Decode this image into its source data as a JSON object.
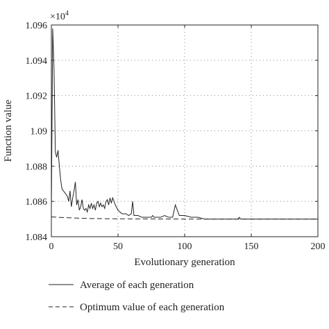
{
  "chart_data": {
    "type": "line",
    "xlabel": "Evolutionary generation",
    "ylabel": "Function value",
    "y_multiplier": "×10",
    "y_multiplier_exp": "4",
    "xlim": [
      0,
      200
    ],
    "ylim": [
      1.084,
      1.096
    ],
    "x_ticks": [
      "0",
      "50",
      "100",
      "150",
      "200"
    ],
    "y_ticks": [
      "1.084",
      "1.086",
      "1.088",
      "1.09",
      "1.092",
      "1.094",
      "1.096"
    ],
    "grid": "dotted",
    "legend_position": "bottom",
    "series": [
      {
        "name": "Average of each generation",
        "style": "solid",
        "points": [
          [
            0,
            1.0855
          ],
          [
            1,
            1.0958
          ],
          [
            2,
            1.0935
          ],
          [
            3,
            1.0888
          ],
          [
            4,
            1.0885
          ],
          [
            5,
            1.0889
          ],
          [
            6,
            1.088
          ],
          [
            7,
            1.0872
          ],
          [
            8,
            1.0867
          ],
          [
            10,
            1.0865
          ],
          [
            12,
            1.0863
          ],
          [
            13,
            1.086
          ],
          [
            14,
            1.0866
          ],
          [
            15,
            1.0857
          ],
          [
            16,
            1.0862
          ],
          [
            17,
            1.0866
          ],
          [
            18,
            1.0871
          ],
          [
            19,
            1.0858
          ],
          [
            20,
            1.0861
          ],
          [
            21,
            1.0855
          ],
          [
            22,
            1.0857
          ],
          [
            23,
            1.0861
          ],
          [
            24,
            1.0856
          ],
          [
            25,
            1.0855
          ],
          [
            26,
            1.0856
          ],
          [
            27,
            1.0854
          ],
          [
            28,
            1.0858
          ],
          [
            29,
            1.0856
          ],
          [
            30,
            1.0859
          ],
          [
            31,
            1.0856
          ],
          [
            32,
            1.0858
          ],
          [
            33,
            1.0855
          ],
          [
            34,
            1.0859
          ],
          [
            35,
            1.086
          ],
          [
            36,
            1.0857
          ],
          [
            37,
            1.0859
          ],
          [
            38,
            1.0857
          ],
          [
            39,
            1.0858
          ],
          [
            40,
            1.0856
          ],
          [
            41,
            1.086
          ],
          [
            42,
            1.0861
          ],
          [
            43,
            1.0858
          ],
          [
            44,
            1.0862
          ],
          [
            45,
            1.0859
          ],
          [
            46,
            1.0862
          ],
          [
            47,
            1.086
          ],
          [
            48,
            1.0858
          ],
          [
            50,
            1.0855
          ],
          [
            53,
            1.0853
          ],
          [
            56,
            1.0853
          ],
          [
            58,
            1.0852
          ],
          [
            60,
            1.0853
          ],
          [
            61,
            1.086
          ],
          [
            62,
            1.0852
          ],
          [
            65,
            1.0852
          ],
          [
            68,
            1.0851
          ],
          [
            72,
            1.0851
          ],
          [
            75,
            1.0851
          ],
          [
            76,
            1.0852
          ],
          [
            77,
            1.0851
          ],
          [
            80,
            1.0851
          ],
          [
            82,
            1.0851
          ],
          [
            85,
            1.0852
          ],
          [
            88,
            1.0851
          ],
          [
            91,
            1.0851
          ],
          [
            93,
            1.0858
          ],
          [
            96,
            1.0852
          ],
          [
            100,
            1.0852
          ],
          [
            105,
            1.0851
          ],
          [
            110,
            1.0851
          ],
          [
            115,
            1.085
          ],
          [
            120,
            1.085
          ],
          [
            130,
            1.085
          ],
          [
            140,
            1.085
          ],
          [
            141,
            1.0851
          ],
          [
            142,
            1.085
          ],
          [
            150,
            1.085
          ],
          [
            160,
            1.085
          ],
          [
            170,
            1.085
          ],
          [
            180,
            1.085
          ],
          [
            190,
            1.085
          ],
          [
            200,
            1.085
          ]
        ]
      },
      {
        "name": "Optimum value of each generation",
        "style": "dashed",
        "points": [
          [
            0,
            1.08512
          ],
          [
            10,
            1.08508
          ],
          [
            20,
            1.08505
          ],
          [
            30,
            1.08503
          ],
          [
            40,
            1.08502
          ],
          [
            60,
            1.08501
          ],
          [
            100,
            1.085
          ],
          [
            200,
            1.085
          ]
        ]
      }
    ]
  },
  "colors": {
    "line": "#222222",
    "grid": "#888888",
    "axis": "#222222"
  }
}
